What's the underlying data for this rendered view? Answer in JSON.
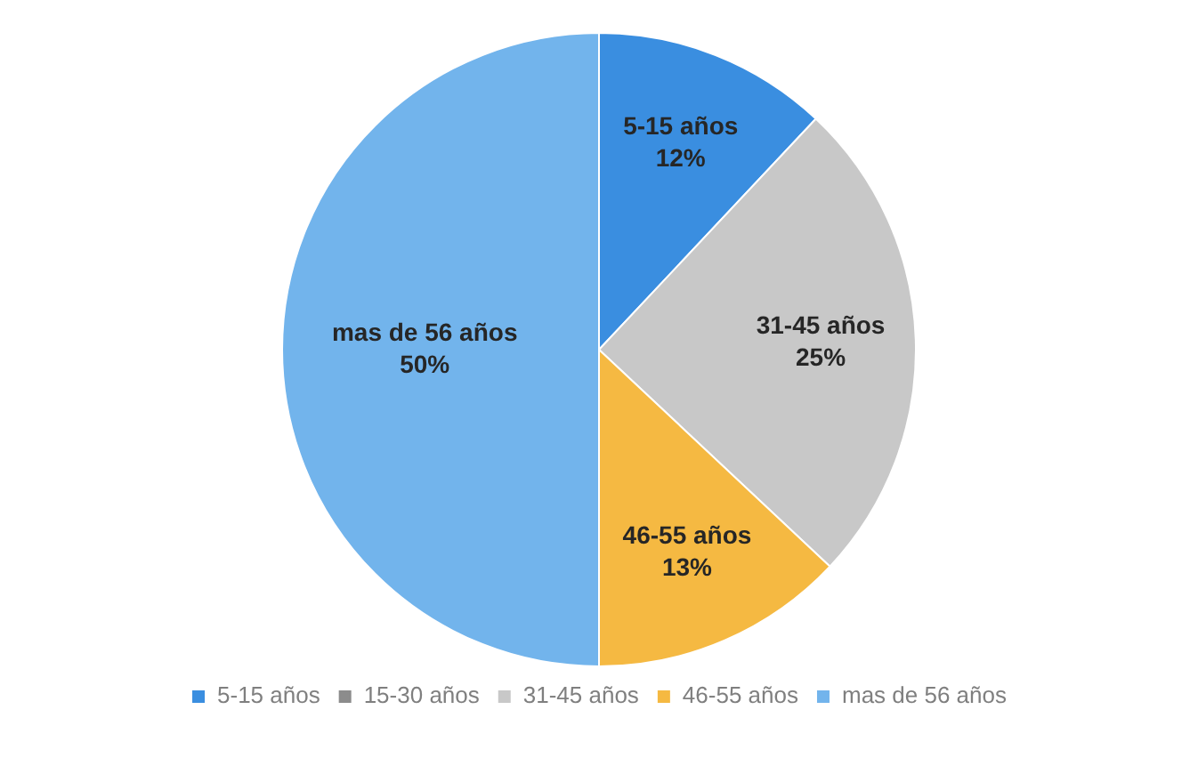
{
  "chart_data": {
    "type": "pie",
    "categories": [
      "5-15 años",
      "15-30 años",
      "31-45 años",
      "46-55 años",
      "mas de 56 años"
    ],
    "values": [
      12,
      0,
      25,
      13,
      50
    ],
    "value_labels": [
      "12%",
      null,
      "25%",
      "13%",
      "50%"
    ],
    "colors": [
      "#3a8ee0",
      "#8c8c8c",
      "#c8c8c8",
      "#f5b942",
      "#72b4ec"
    ],
    "legend": "bottom"
  }
}
